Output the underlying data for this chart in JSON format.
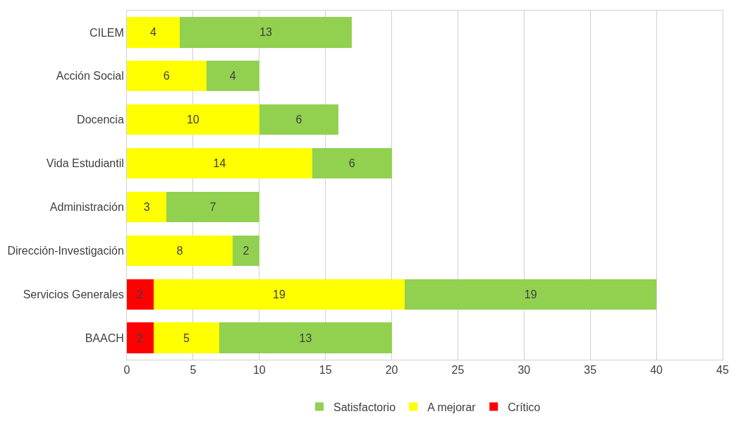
{
  "chart_data": {
    "type": "bar",
    "orientation": "horizontal",
    "stacked": true,
    "data_labels": true,
    "grid": "x",
    "legend": "bottom",
    "categories": [
      "CILEM",
      "Acción Social",
      "Docencia",
      "Vida Estudiantil",
      "Administración",
      "Dirección-Investigación",
      "Servicios Generales",
      "BAACH"
    ],
    "series": [
      {
        "name": "Crítico",
        "color": "#ff0000",
        "values": [
          null,
          null,
          null,
          null,
          null,
          null,
          2,
          2
        ]
      },
      {
        "name": "A mejorar",
        "color": "#ffff00",
        "values": [
          4,
          6,
          10,
          14,
          3,
          8,
          19,
          5
        ]
      },
      {
        "name": "Satisfactorio",
        "color": "#92d050",
        "values": [
          13,
          4,
          6,
          6,
          7,
          2,
          19,
          13
        ]
      }
    ],
    "xlim": [
      0,
      45
    ],
    "xticks": [
      0,
      5,
      10,
      15,
      20,
      25,
      30,
      35,
      40,
      45
    ]
  }
}
